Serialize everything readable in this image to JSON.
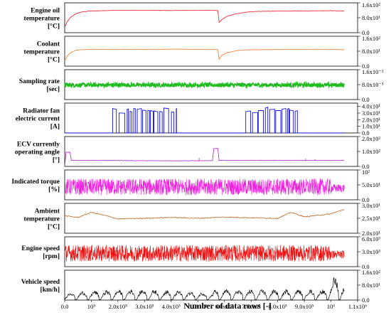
{
  "chart_data": {
    "type": "line",
    "x_axis": {
      "xlabel": "Number of data rows [-]",
      "xlim": [
        0,
        1100000
      ],
      "ticks": [
        0,
        100000,
        200000,
        300000,
        400000,
        500000,
        600000,
        700000,
        800000,
        900000,
        1000000,
        1100000
      ],
      "tick_labels": [
        "0.0",
        "10⁵",
        "2.0x10⁵",
        "3.0x10⁵",
        "4.0x10⁵",
        "5.0x10⁵",
        "6.0x10⁵",
        "7.0x10⁵",
        "8.0x10⁵",
        "9.0x10⁵",
        "10⁶",
        "1.1x10⁶"
      ]
    },
    "panels": [
      {
        "label_lines": [
          "Engine oil",
          "temperature",
          "[°C]"
        ],
        "color": "#e8141e",
        "pattern": "warmup",
        "ylim": [
          0,
          160
        ],
        "y_ticks": [
          0,
          80,
          160
        ],
        "y_tick_labels": [
          "0.0",
          "8.0x10¹",
          "1.6x10²"
        ],
        "x": [
          0,
          8000,
          20000,
          40000,
          60000,
          90000,
          140000,
          200000,
          300000,
          400000,
          500000,
          560000,
          575000,
          580000,
          590000,
          610000,
          640000,
          680000,
          720000,
          800000,
          900000,
          1000000,
          1050000
        ],
        "y": [
          30,
          55,
          80,
          100,
          110,
          116,
          118,
          120,
          120,
          119,
          120,
          120,
          118,
          55,
          70,
          88,
          100,
          110,
          114,
          116,
          117,
          118,
          116
        ]
      },
      {
        "label_lines": [
          "Coolant",
          "temperature",
          "[°C]"
        ],
        "color": "#ee7722",
        "pattern": "warmup",
        "ylim": [
          0,
          160
        ],
        "y_ticks": [
          0,
          80,
          160
        ],
        "y_tick_labels": [
          "0.0",
          "8.0x10¹",
          "1.6x10²"
        ],
        "x": [
          0,
          8000,
          20000,
          40000,
          60000,
          100000,
          200000,
          300000,
          400000,
          500000,
          560000,
          575000,
          580000,
          590000,
          610000,
          650000,
          700000,
          800000,
          900000,
          1000000,
          1050000
        ],
        "y": [
          28,
          50,
          70,
          84,
          88,
          90,
          90,
          90,
          91,
          90,
          90,
          88,
          38,
          58,
          72,
          84,
          88,
          89,
          90,
          90,
          88
        ]
      },
      {
        "label_lines": [
          "Sampling rate",
          "[sec]"
        ],
        "color": "#22bb22",
        "pattern": "band",
        "ylim": [
          0,
          0.016
        ],
        "y_ticks": [
          0,
          0.008,
          0.016
        ],
        "y_tick_labels": [
          "0.0",
          "8.0x10⁻³",
          "1.6x10⁻²"
        ],
        "x": [
          0,
          1050000
        ],
        "y": [
          0.0078,
          0.0078
        ]
      },
      {
        "label_lines": [
          "Radiator fan",
          "electric current",
          "[A]"
        ],
        "color": "#1010dd",
        "pattern": "pulses",
        "ylim": [
          0,
          45
        ],
        "y_ticks": [
          0,
          10,
          20,
          30,
          40
        ],
        "y_tick_labels": [
          "0.0",
          "1.0x10¹",
          "2.0x10¹",
          "3.0x10¹",
          "4.0x10¹"
        ],
        "x": [
          0,
          1050000
        ],
        "y": [
          0,
          0
        ]
      },
      {
        "label_lines": [
          "ECV currently",
          "operating angle",
          "[°]"
        ],
        "color": "#aa22cc",
        "pattern": "steps",
        "ylim": [
          0,
          200
        ],
        "y_ticks": [
          0,
          100,
          200
        ],
        "y_tick_labels": [
          "0.0",
          "1.0x10²",
          "2.0x10²"
        ],
        "x": [
          0,
          5000,
          20000,
          25000,
          50000,
          150000,
          300000,
          500000,
          555000,
          560000,
          575000,
          580000,
          700000,
          800000,
          1000000,
          1050000
        ],
        "y": [
          0,
          95,
          95,
          40,
          40,
          40,
          38,
          38,
          38,
          120,
          120,
          40,
          40,
          40,
          40,
          40
        ]
      },
      {
        "label_lines": [
          "Indicated torque",
          "[%]"
        ],
        "color": "#ee22dd",
        "pattern": "noise",
        "ylim": [
          0,
          100
        ],
        "y_ticks": [
          0,
          50,
          100
        ],
        "y_tick_labels": [
          "0.0",
          "5.0x10¹",
          "10²"
        ],
        "x": [
          0,
          1050000
        ],
        "y": [
          35,
          35
        ]
      },
      {
        "label_lines": [
          "Ambient",
          "temperature",
          "[°C]"
        ],
        "color": "#bb6622",
        "pattern": "wave",
        "ylim": [
          20,
          30
        ],
        "y_ticks": [
          20,
          25,
          30
        ],
        "y_tick_labels": [
          "2.0x10¹",
          "2.5x10¹",
          "3.0x10¹"
        ],
        "x": [
          0,
          50000,
          100000,
          150000,
          200000,
          300000,
          400000,
          500000,
          600000,
          700000,
          800000,
          850000,
          900000,
          1000000,
          1050000
        ],
        "y": [
          25.8,
          25.3,
          27.0,
          26.0,
          24.8,
          25.0,
          25.3,
          25.0,
          25.4,
          25.2,
          25.0,
          27.0,
          25.5,
          26.5,
          28.0
        ]
      },
      {
        "label_lines": [
          "Engine speed",
          "[rpm]"
        ],
        "color": "#ee1111",
        "pattern": "noise",
        "ylim": [
          0,
          6000
        ],
        "y_ticks": [
          0,
          3000,
          6000
        ],
        "y_tick_labels": [
          "0.0",
          "3.0x10³",
          "6.0x10³"
        ],
        "x": [
          0,
          1050000
        ],
        "y": [
          2200,
          2200
        ]
      },
      {
        "label_lines": [
          "Vehicle speed",
          "[km/h]"
        ],
        "color": "#111111",
        "pattern": "bursts",
        "ylim": [
          0,
          160
        ],
        "y_ticks": [
          0,
          80,
          160
        ],
        "y_tick_labels": [
          "0.0",
          "8.0x10¹",
          "1.6x10²"
        ],
        "x": [
          0,
          1050000
        ],
        "y": [
          20,
          20
        ]
      }
    ]
  }
}
